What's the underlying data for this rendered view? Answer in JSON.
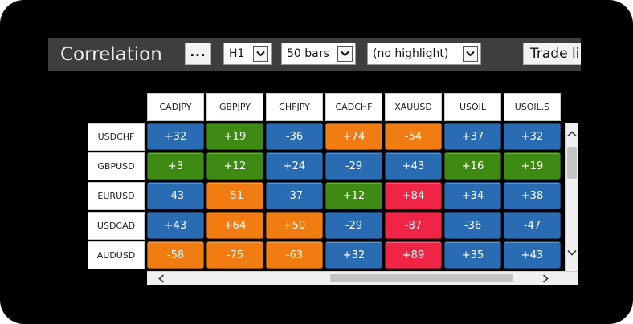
{
  "app": {
    "title": "Correlation"
  },
  "toolbar": {
    "more_label": "...",
    "timeframe": "H1",
    "bars": "50 bars",
    "highlight": "(no highlight)",
    "trade_label": "Trade li"
  },
  "colors": {
    "blue": "#2a6cb3",
    "green": "#3f8a12",
    "orange": "#f07c12",
    "red": "#f02444"
  },
  "columns": [
    "CADJPY",
    "GBPJPY",
    "CHFJPY",
    "CADCHF",
    "XAUUSD",
    "USOIL",
    "USOIL.S"
  ],
  "rows": [
    {
      "name": "USDCHF",
      "values": [
        "+32",
        "+19",
        "-36",
        "+74",
        "-54",
        "+37",
        "+32"
      ],
      "tones": [
        "blue",
        "green",
        "blue",
        "orange",
        "orange",
        "blue",
        "blue"
      ]
    },
    {
      "name": "GBPUSD",
      "values": [
        "+3",
        "+12",
        "+24",
        "-29",
        "+43",
        "+16",
        "+19"
      ],
      "tones": [
        "green",
        "green",
        "blue",
        "blue",
        "blue",
        "green",
        "green"
      ]
    },
    {
      "name": "EURUSD",
      "values": [
        "-43",
        "-51",
        "-37",
        "+12",
        "+84",
        "+34",
        "+38"
      ],
      "tones": [
        "blue",
        "orange",
        "blue",
        "green",
        "red",
        "blue",
        "blue"
      ]
    },
    {
      "name": "USDCAD",
      "values": [
        "+43",
        "+64",
        "+50",
        "-29",
        "-87",
        "-36",
        "-47"
      ],
      "tones": [
        "blue",
        "orange",
        "orange",
        "blue",
        "red",
        "blue",
        "blue"
      ]
    },
    {
      "name": "AUDUSD",
      "values": [
        "-58",
        "-75",
        "-63",
        "+32",
        "+89",
        "+35",
        "+43"
      ],
      "tones": [
        "orange",
        "orange",
        "orange",
        "blue",
        "red",
        "blue",
        "blue"
      ]
    }
  ]
}
